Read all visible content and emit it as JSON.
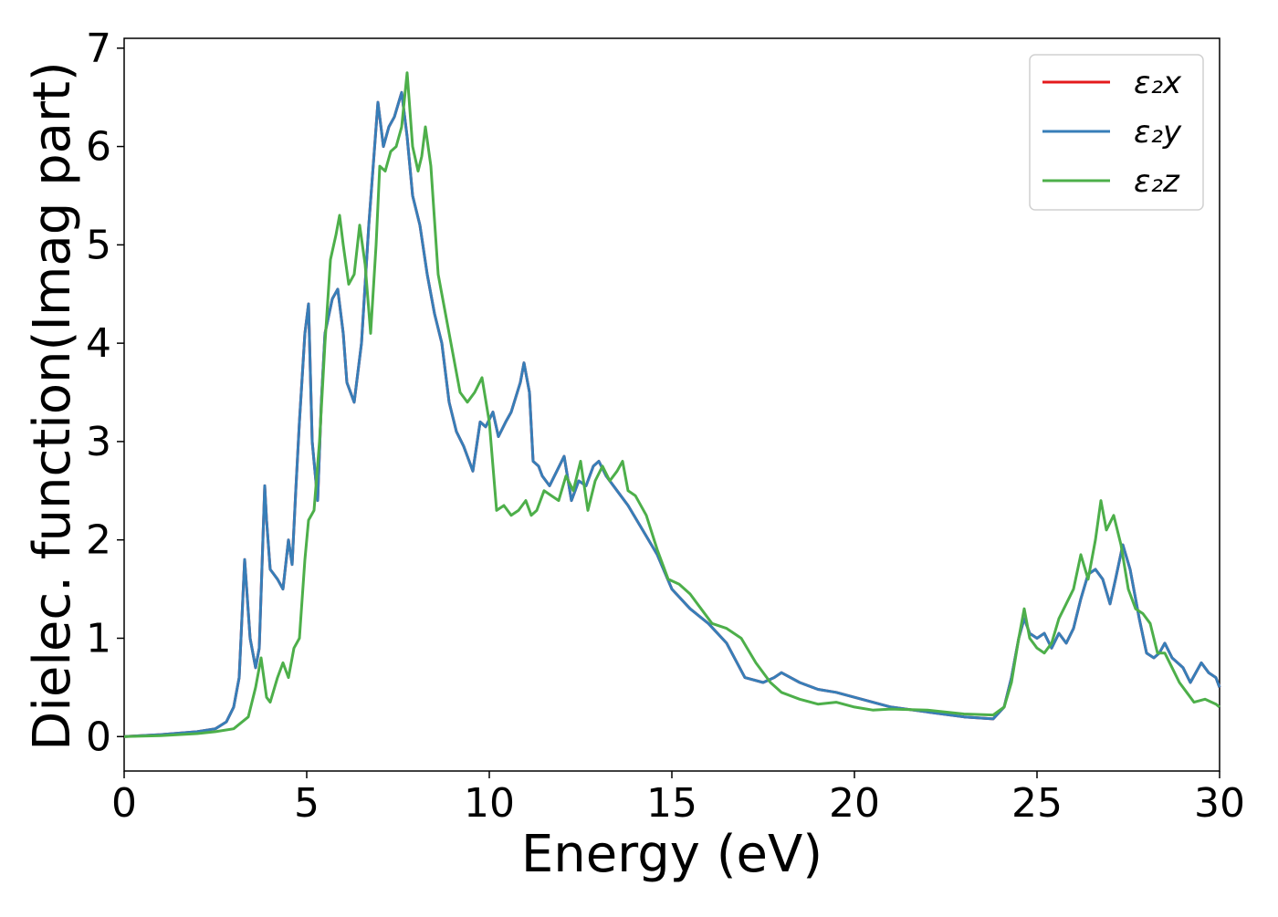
{
  "chart_data": {
    "type": "line",
    "title": "",
    "xlabel": "Energy (eV)",
    "ylabel": "Dielec. function(Imag part)",
    "xlim": [
      0,
      30
    ],
    "ylim": [
      -0.35,
      7.1
    ],
    "xticks": [
      0,
      5,
      10,
      15,
      20,
      25,
      30
    ],
    "yticks": [
      0,
      1,
      2,
      3,
      4,
      5,
      6,
      7
    ],
    "grid": false,
    "legend_position": "top-right",
    "series": [
      {
        "name": "ε₂x",
        "color": "#e41a1c",
        "x": [
          0,
          1,
          2,
          2.5,
          2.8,
          3.0,
          3.15,
          3.3,
          3.45,
          3.6,
          3.7,
          3.85,
          3.9,
          4.0,
          4.1,
          4.2,
          4.35,
          4.5,
          4.6,
          4.7,
          4.8,
          4.95,
          5.05,
          5.15,
          5.3,
          5.4,
          5.5,
          5.7,
          5.85,
          6.0,
          6.1,
          6.3,
          6.5,
          6.7,
          6.95,
          7.1,
          7.25,
          7.4,
          7.6,
          7.75,
          7.9,
          8.1,
          8.3,
          8.5,
          8.7,
          8.9,
          9.1,
          9.3,
          9.55,
          9.75,
          9.9,
          10.1,
          10.25,
          10.45,
          10.6,
          10.85,
          10.95,
          11.1,
          11.2,
          11.35,
          11.45,
          11.65,
          11.85,
          12.05,
          12.25,
          12.45,
          12.65,
          12.85,
          13.0,
          13.2,
          13.5,
          13.8,
          14.2,
          14.6,
          15.0,
          15.5,
          16.0,
          16.5,
          17.0,
          17.5,
          17.8,
          18.0,
          18.5,
          19.0,
          19.5,
          20.0,
          20.5,
          21.0,
          22.0,
          23.0,
          23.8,
          24.1,
          24.3,
          24.5,
          24.65,
          24.8,
          25.0,
          25.2,
          25.4,
          25.6,
          25.8,
          26.0,
          26.2,
          26.4,
          26.6,
          26.8,
          27.0,
          27.15,
          27.35,
          27.55,
          27.8,
          28.0,
          28.2,
          28.35,
          28.5,
          28.7,
          29.0,
          29.2,
          29.5,
          29.7,
          29.9,
          30.0
        ],
        "y": [
          0.0,
          0.02,
          0.05,
          0.08,
          0.15,
          0.3,
          0.6,
          1.8,
          1.0,
          0.7,
          0.9,
          2.55,
          2.2,
          1.7,
          1.65,
          1.6,
          1.5,
          2.0,
          1.75,
          2.5,
          3.2,
          4.1,
          4.4,
          3.0,
          2.4,
          3.4,
          4.1,
          4.45,
          4.55,
          4.1,
          3.6,
          3.4,
          4.0,
          5.2,
          6.45,
          6.0,
          6.2,
          6.3,
          6.55,
          6.1,
          5.5,
          5.2,
          4.7,
          4.3,
          4.0,
          3.4,
          3.1,
          2.95,
          2.7,
          3.2,
          3.15,
          3.3,
          3.05,
          3.2,
          3.3,
          3.6,
          3.8,
          3.5,
          2.8,
          2.75,
          2.65,
          2.55,
          2.7,
          2.85,
          2.4,
          2.6,
          2.55,
          2.75,
          2.8,
          2.65,
          2.5,
          2.35,
          2.1,
          1.85,
          1.5,
          1.3,
          1.15,
          0.95,
          0.6,
          0.55,
          0.6,
          0.65,
          0.55,
          0.48,
          0.45,
          0.4,
          0.35,
          0.3,
          0.25,
          0.2,
          0.18,
          0.3,
          0.6,
          1.0,
          1.2,
          1.05,
          1.0,
          1.05,
          0.9,
          1.05,
          0.95,
          1.1,
          1.4,
          1.65,
          1.7,
          1.6,
          1.35,
          1.6,
          1.95,
          1.7,
          1.2,
          0.85,
          0.8,
          0.85,
          0.95,
          0.8,
          0.7,
          0.55,
          0.75,
          0.65,
          0.6,
          0.5
        ]
      },
      {
        "name": "ε₂y",
        "color": "#377eb8",
        "x": [
          0,
          1,
          2,
          2.5,
          2.8,
          3.0,
          3.15,
          3.3,
          3.45,
          3.6,
          3.7,
          3.85,
          3.9,
          4.0,
          4.1,
          4.2,
          4.35,
          4.5,
          4.6,
          4.7,
          4.8,
          4.95,
          5.05,
          5.15,
          5.3,
          5.4,
          5.5,
          5.7,
          5.85,
          6.0,
          6.1,
          6.3,
          6.5,
          6.7,
          6.95,
          7.1,
          7.25,
          7.4,
          7.6,
          7.75,
          7.9,
          8.1,
          8.3,
          8.5,
          8.7,
          8.9,
          9.1,
          9.3,
          9.55,
          9.75,
          9.9,
          10.1,
          10.25,
          10.45,
          10.6,
          10.85,
          10.95,
          11.1,
          11.2,
          11.35,
          11.45,
          11.65,
          11.85,
          12.05,
          12.25,
          12.45,
          12.65,
          12.85,
          13.0,
          13.2,
          13.5,
          13.8,
          14.2,
          14.6,
          15.0,
          15.5,
          16.0,
          16.5,
          17.0,
          17.5,
          17.8,
          18.0,
          18.5,
          19.0,
          19.5,
          20.0,
          20.5,
          21.0,
          22.0,
          23.0,
          23.8,
          24.1,
          24.3,
          24.5,
          24.65,
          24.8,
          25.0,
          25.2,
          25.4,
          25.6,
          25.8,
          26.0,
          26.2,
          26.4,
          26.6,
          26.8,
          27.0,
          27.15,
          27.35,
          27.55,
          27.8,
          28.0,
          28.2,
          28.35,
          28.5,
          28.7,
          29.0,
          29.2,
          29.5,
          29.7,
          29.9,
          30.0
        ],
        "y": [
          0.0,
          0.02,
          0.05,
          0.08,
          0.15,
          0.3,
          0.6,
          1.8,
          1.0,
          0.7,
          0.9,
          2.55,
          2.2,
          1.7,
          1.65,
          1.6,
          1.5,
          2.0,
          1.75,
          2.5,
          3.2,
          4.1,
          4.4,
          3.0,
          2.4,
          3.4,
          4.1,
          4.45,
          4.55,
          4.1,
          3.6,
          3.4,
          4.0,
          5.2,
          6.45,
          6.0,
          6.2,
          6.3,
          6.55,
          6.1,
          5.5,
          5.2,
          4.7,
          4.3,
          4.0,
          3.4,
          3.1,
          2.95,
          2.7,
          3.2,
          3.15,
          3.3,
          3.05,
          3.2,
          3.3,
          3.6,
          3.8,
          3.5,
          2.8,
          2.75,
          2.65,
          2.55,
          2.7,
          2.85,
          2.4,
          2.6,
          2.55,
          2.75,
          2.8,
          2.65,
          2.5,
          2.35,
          2.1,
          1.85,
          1.5,
          1.3,
          1.15,
          0.95,
          0.6,
          0.55,
          0.6,
          0.65,
          0.55,
          0.48,
          0.45,
          0.4,
          0.35,
          0.3,
          0.25,
          0.2,
          0.18,
          0.3,
          0.6,
          1.0,
          1.2,
          1.05,
          1.0,
          1.05,
          0.9,
          1.05,
          0.95,
          1.1,
          1.4,
          1.65,
          1.7,
          1.6,
          1.35,
          1.6,
          1.95,
          1.7,
          1.2,
          0.85,
          0.8,
          0.85,
          0.95,
          0.8,
          0.7,
          0.55,
          0.75,
          0.65,
          0.6,
          0.5
        ]
      },
      {
        "name": "ε₂z",
        "color": "#4daf4a",
        "x": [
          0,
          1,
          2,
          2.5,
          3.0,
          3.4,
          3.6,
          3.75,
          3.9,
          4.0,
          4.2,
          4.35,
          4.5,
          4.65,
          4.8,
          4.95,
          5.05,
          5.2,
          5.35,
          5.5,
          5.65,
          5.8,
          5.9,
          6.0,
          6.15,
          6.3,
          6.45,
          6.6,
          6.75,
          6.9,
          7.0,
          7.15,
          7.3,
          7.45,
          7.6,
          7.75,
          7.9,
          8.05,
          8.15,
          8.25,
          8.4,
          8.6,
          8.8,
          9.0,
          9.2,
          9.4,
          9.6,
          9.8,
          10.0,
          10.2,
          10.4,
          10.6,
          10.8,
          11.0,
          11.15,
          11.3,
          11.5,
          11.7,
          11.9,
          12.1,
          12.3,
          12.5,
          12.7,
          12.9,
          13.1,
          13.3,
          13.5,
          13.65,
          13.8,
          14.0,
          14.3,
          14.6,
          14.9,
          15.2,
          15.5,
          15.8,
          16.1,
          16.5,
          16.9,
          17.3,
          17.7,
          18.0,
          18.5,
          19.0,
          19.5,
          20.0,
          20.5,
          21.0,
          22.0,
          23.0,
          23.8,
          24.1,
          24.3,
          24.5,
          24.65,
          24.8,
          25.0,
          25.2,
          25.4,
          25.6,
          25.8,
          26.0,
          26.2,
          26.4,
          26.6,
          26.75,
          26.9,
          27.1,
          27.3,
          27.5,
          27.7,
          27.9,
          28.1,
          28.3,
          28.5,
          28.7,
          28.9,
          29.1,
          29.3,
          29.6,
          29.9,
          30.0
        ],
        "y": [
          0.0,
          0.01,
          0.03,
          0.05,
          0.08,
          0.2,
          0.5,
          0.8,
          0.4,
          0.35,
          0.6,
          0.75,
          0.6,
          0.9,
          1.0,
          1.8,
          2.2,
          2.3,
          3.0,
          4.0,
          4.85,
          5.1,
          5.3,
          5.0,
          4.6,
          4.7,
          5.2,
          4.8,
          4.1,
          5.0,
          5.8,
          5.75,
          5.95,
          6.0,
          6.2,
          6.75,
          6.0,
          5.75,
          5.9,
          6.2,
          5.8,
          4.7,
          4.3,
          3.9,
          3.5,
          3.4,
          3.5,
          3.65,
          3.2,
          2.3,
          2.35,
          2.25,
          2.3,
          2.4,
          2.25,
          2.3,
          2.5,
          2.45,
          2.4,
          2.65,
          2.5,
          2.8,
          2.3,
          2.6,
          2.75,
          2.6,
          2.7,
          2.8,
          2.5,
          2.45,
          2.25,
          1.9,
          1.6,
          1.55,
          1.45,
          1.3,
          1.15,
          1.1,
          1.0,
          0.75,
          0.55,
          0.45,
          0.38,
          0.33,
          0.35,
          0.3,
          0.27,
          0.28,
          0.27,
          0.23,
          0.22,
          0.3,
          0.55,
          1.0,
          1.3,
          1.0,
          0.9,
          0.85,
          0.95,
          1.2,
          1.35,
          1.5,
          1.85,
          1.6,
          2.0,
          2.4,
          2.1,
          2.25,
          1.95,
          1.5,
          1.3,
          1.25,
          1.15,
          0.85,
          0.85,
          0.7,
          0.55,
          0.45,
          0.35,
          0.38,
          0.33,
          0.3
        ]
      }
    ]
  }
}
